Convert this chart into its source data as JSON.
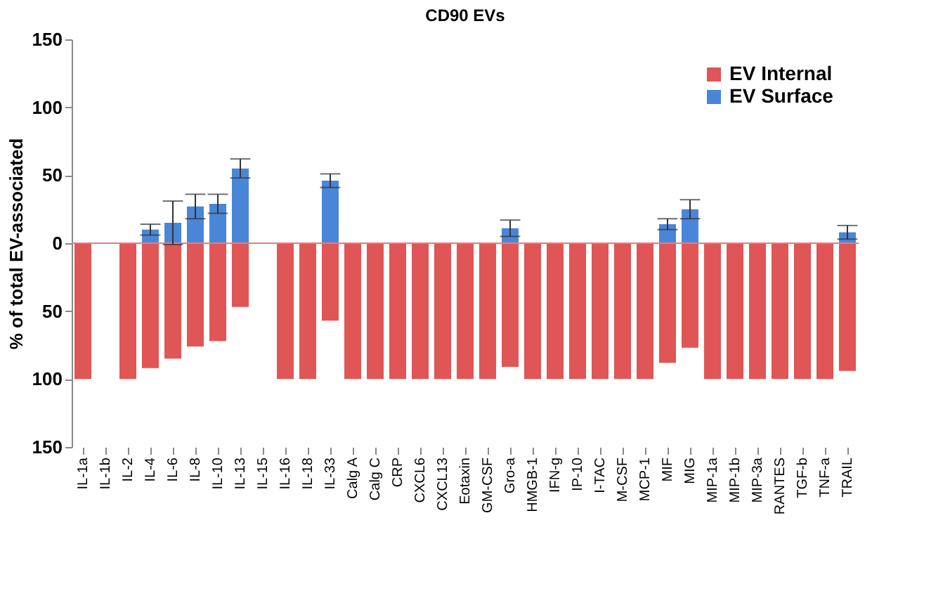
{
  "chart_data": {
    "type": "bar",
    "title": "CD90 EVs",
    "ylabel": "% of total EV-associated",
    "categories": [
      "IL-1a",
      "IL-1b",
      "IL-2",
      "IL-4",
      "IL-6",
      "IL-8",
      "IL-10",
      "IL-13",
      "IL-15",
      "IL-16",
      "IL-18",
      "IL-33",
      "Calg A",
      "Calg C",
      "CRP",
      "CXCL6",
      "CXCL13",
      "Eotaxin",
      "GM-CSF",
      "Gro-a",
      "HMGB-1",
      "IFN-g",
      "IP-10",
      "I-TAC",
      "M-CSF",
      "MCP-1",
      "MIF",
      "MIG",
      "MIP-1a",
      "MIP-1b",
      "MIP-3a",
      "RANTES",
      "TGF-b",
      "TNF-a",
      "TRAIL"
    ],
    "series": [
      {
        "name": "EV Internal",
        "color": "#e05555",
        "values": [
          -100,
          0,
          -100,
          -92,
          -85,
          -76,
          -72,
          -47,
          0,
          -100,
          -100,
          -57,
          -100,
          -100,
          -100,
          -100,
          -100,
          -100,
          -100,
          -91,
          -100,
          -100,
          -100,
          -100,
          -100,
          -100,
          -88,
          -77,
          -100,
          -100,
          -100,
          -100,
          -100,
          -100,
          -94
        ]
      },
      {
        "name": "EV Surface",
        "color": "#4a86d8",
        "values": [
          0,
          0,
          0,
          10,
          15,
          27,
          29,
          55,
          0,
          0,
          0,
          46,
          0,
          0,
          0,
          0,
          0,
          0,
          0,
          11,
          0,
          0,
          0,
          0,
          0,
          0,
          14,
          25,
          0,
          0,
          0,
          0,
          0,
          0,
          8
        ],
        "errors": [
          null,
          null,
          null,
          4,
          16,
          9,
          7,
          7,
          null,
          null,
          null,
          5,
          null,
          null,
          null,
          null,
          null,
          null,
          null,
          6,
          null,
          null,
          null,
          null,
          null,
          null,
          4,
          7,
          null,
          null,
          null,
          null,
          null,
          null,
          5
        ]
      }
    ],
    "ylim": [
      -150,
      150
    ],
    "yticks": [
      {
        "value": -150,
        "label": "150"
      },
      {
        "value": -100,
        "label": "100"
      },
      {
        "value": -50,
        "label": "50"
      },
      0,
      50,
      100,
      150
    ],
    "ref_lines": [
      {
        "axis": "y",
        "value": 0,
        "color": "#e08080"
      }
    ],
    "grid": false,
    "legend": "top right"
  }
}
